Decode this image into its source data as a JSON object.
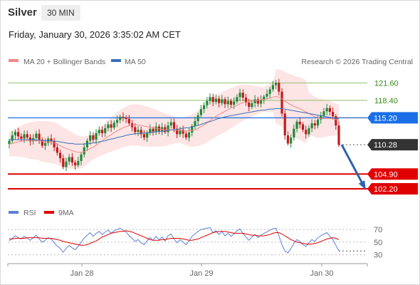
{
  "header": {
    "instrument": "Silver",
    "timeframe": "30 MIN",
    "datetime": "Friday, January 30, 2026 3:35:02 AM CET"
  },
  "legend": {
    "ma20_bb": "MA 20 + Bollinger Bands",
    "ma50": "MA 50",
    "credit": "Research © 2026 Trading Central",
    "rsi": "RSI",
    "rsi_ma": "9MA"
  },
  "colors": {
    "up": "#1f8a3a",
    "down": "#c21a1a",
    "ma20": "#f08a8a",
    "ma50": "#3a6fb5",
    "bands": "#fde2e2",
    "pivot": "#1a6fe8",
    "resistance": "#8fbf6a",
    "support": "#e00000",
    "current": "#333333",
    "arrow": "#2f62a8",
    "rsi": "#5b7fd6",
    "rsi_ma": "#e00000"
  },
  "chart_data": [
    {
      "type": "candlestick",
      "title": "",
      "ylim": [
        100.5,
        124.0
      ],
      "x_ticks": [
        "Jan 28",
        "Jan 29",
        "Jan 30"
      ],
      "levels": [
        {
          "value": 121.6,
          "label": "121.60",
          "kind": "resistance"
        },
        {
          "value": 118.4,
          "label": "118.40",
          "kind": "resistance"
        },
        {
          "value": 115.2,
          "label": "115.20",
          "kind": "pivot"
        },
        {
          "value": 110.28,
          "label": "110.28",
          "kind": "current"
        },
        {
          "value": 104.9,
          "label": "104.90",
          "kind": "support"
        },
        {
          "value": 102.2,
          "label": "102.20",
          "kind": "support"
        }
      ],
      "closes": [
        111.0,
        112.0,
        112.6,
        111.8,
        111.4,
        112.2,
        111.6,
        110.9,
        111.5,
        112.3,
        111.2,
        110.1,
        110.6,
        111.4,
        111.0,
        109.8,
        108.8,
        107.8,
        106.2,
        107.2,
        108.0,
        107.0,
        106.5,
        107.3,
        108.5,
        109.8,
        111.0,
        112.0,
        111.2,
        112.4,
        113.0,
        112.4,
        113.3,
        114.0,
        113.4,
        114.3,
        114.8,
        115.4,
        115.2,
        115.0,
        114.2,
        113.5,
        112.6,
        113.0,
        112.2,
        111.6,
        112.4,
        113.2,
        112.7,
        113.6,
        112.8,
        113.5,
        112.6,
        113.8,
        114.4,
        113.2,
        112.2,
        113.0,
        112.3,
        111.6,
        112.5,
        113.7,
        114.6,
        115.7,
        116.8,
        117.5,
        118.3,
        119.0,
        118.1,
        118.7,
        117.9,
        118.6,
        117.7,
        118.3,
        117.6,
        118.2,
        119.0,
        119.8,
        118.9,
        118.0,
        117.2,
        117.9,
        118.6,
        117.8,
        118.5,
        119.1,
        119.6,
        120.4,
        121.2,
        121.6,
        120.0,
        116.0,
        112.0,
        110.5,
        111.6,
        113.2,
        114.5,
        114.0,
        113.0,
        112.2,
        113.3,
        114.2,
        113.8,
        114.9,
        115.6,
        116.4,
        117.0,
        116.3,
        115.5,
        113.8,
        110.28
      ],
      "ma20": [
        110.4,
        110.5,
        110.7,
        110.8,
        110.9,
        111.0,
        111.0,
        111.0,
        111.0,
        111.1,
        111.0,
        110.9,
        110.8,
        110.8,
        110.7,
        110.6,
        110.4,
        110.1,
        109.8,
        109.6,
        109.4,
        109.2,
        109.0,
        108.9,
        108.9,
        109.0,
        109.3,
        109.6,
        109.8,
        110.2,
        110.6,
        111.0,
        111.4,
        111.8,
        112.1,
        112.5,
        112.8,
        113.1,
        113.4,
        113.6,
        113.8,
        113.9,
        113.9,
        113.9,
        113.8,
        113.7,
        113.6,
        113.5,
        113.4,
        113.3,
        113.2,
        113.1,
        113.0,
        113.0,
        113.0,
        113.0,
        112.9,
        112.9,
        112.8,
        112.8,
        112.8,
        112.9,
        113.0,
        113.3,
        113.6,
        113.9,
        114.3,
        114.7,
        115.1,
        115.5,
        115.8,
        116.1,
        116.4,
        116.7,
        117.0,
        117.2,
        117.5,
        117.8,
        118.0,
        118.1,
        118.2,
        118.3,
        118.4,
        118.4,
        118.5,
        118.6,
        118.7,
        118.8,
        119.0,
        119.1,
        119.0,
        118.7,
        118.3,
        117.9,
        117.6,
        117.3,
        117.1,
        116.9,
        116.6,
        116.3,
        116.0,
        115.7,
        115.4,
        115.2,
        115.1,
        115.1,
        115.1,
        115.1,
        115.0,
        114.9,
        114.8
      ],
      "ma50": [
        111.2,
        111.2,
        111.2,
        111.2,
        111.2,
        111.2,
        111.2,
        111.2,
        111.2,
        111.1,
        111.1,
        111.1,
        111.0,
        111.0,
        111.0,
        110.9,
        110.9,
        110.8,
        110.7,
        110.6,
        110.5,
        110.5,
        110.4,
        110.4,
        110.4,
        110.4,
        110.5,
        110.5,
        110.6,
        110.7,
        110.8,
        110.9,
        111.0,
        111.2,
        111.3,
        111.4,
        111.6,
        111.7,
        111.8,
        112.0,
        112.1,
        112.2,
        112.3,
        112.3,
        112.4,
        112.4,
        112.5,
        112.5,
        112.6,
        112.6,
        112.7,
        112.7,
        112.8,
        112.9,
        113.0,
        113.0,
        113.1,
        113.2,
        113.3,
        113.4,
        113.4,
        113.5,
        113.7,
        113.8,
        114.0,
        114.2,
        114.4,
        114.5,
        114.7,
        114.9,
        115.1,
        115.2,
        115.4,
        115.5,
        115.6,
        115.7,
        115.8,
        115.9,
        116.0,
        116.1,
        116.2,
        116.3,
        116.4,
        116.5,
        116.6,
        116.6,
        116.7,
        116.8,
        116.8,
        116.9,
        116.9,
        116.9,
        116.8,
        116.7,
        116.6,
        116.5,
        116.4,
        116.3,
        116.2,
        116.1,
        116.0,
        115.9,
        115.8,
        115.7,
        115.6,
        115.5,
        115.4,
        115.3,
        115.2,
        115.1,
        115.0
      ],
      "projection": {
        "from": 110.28,
        "to": 102.2
      }
    },
    {
      "type": "line",
      "title": "",
      "ylim": [
        25,
        78
      ],
      "y_ticks": [
        70,
        50,
        30
      ],
      "series": [
        {
          "name": "RSI",
          "values": [
            52,
            56,
            60,
            57,
            55,
            59,
            56,
            53,
            57,
            61,
            55,
            50,
            53,
            57,
            55,
            49,
            44,
            40,
            34,
            40,
            45,
            41,
            38,
            43,
            50,
            56,
            61,
            65,
            59,
            64,
            67,
            62,
            66,
            69,
            64,
            68,
            70,
            72,
            69,
            66,
            60,
            56,
            51,
            54,
            49,
            46,
            52,
            57,
            53,
            59,
            54,
            58,
            52,
            60,
            63,
            55,
            49,
            54,
            50,
            46,
            52,
            59,
            63,
            67,
            70,
            71,
            72,
            73,
            65,
            68,
            62,
            67,
            60,
            64,
            59,
            63,
            68,
            71,
            64,
            58,
            53,
            58,
            62,
            57,
            61,
            64,
            66,
            69,
            71,
            72,
            60,
            46,
            36,
            33,
            40,
            48,
            54,
            51,
            46,
            43,
            49,
            54,
            51,
            57,
            60,
            63,
            65,
            59,
            54,
            45,
            36
          ]
        },
        {
          "name": "9MA",
          "values": [
            55,
            55,
            56,
            56,
            56,
            56,
            57,
            57,
            57,
            57,
            57,
            56,
            56,
            56,
            56,
            55,
            54,
            53,
            51,
            50,
            49,
            48,
            47,
            46,
            45,
            45,
            46,
            48,
            50,
            52,
            55,
            58,
            60,
            62,
            64,
            65,
            66,
            67,
            67,
            68,
            67,
            66,
            64,
            62,
            60,
            58,
            56,
            54,
            53,
            53,
            53,
            54,
            54,
            55,
            56,
            56,
            56,
            56,
            55,
            54,
            53,
            53,
            54,
            55,
            57,
            59,
            61,
            63,
            65,
            66,
            67,
            67,
            67,
            66,
            65,
            64,
            64,
            64,
            64,
            63,
            62,
            61,
            61,
            60,
            60,
            60,
            61,
            62,
            64,
            65,
            65,
            63,
            60,
            57,
            54,
            52,
            50,
            49,
            48,
            47,
            47,
            47,
            48,
            49,
            51,
            53,
            55,
            56,
            57,
            56,
            54
          ]
        }
      ]
    }
  ]
}
